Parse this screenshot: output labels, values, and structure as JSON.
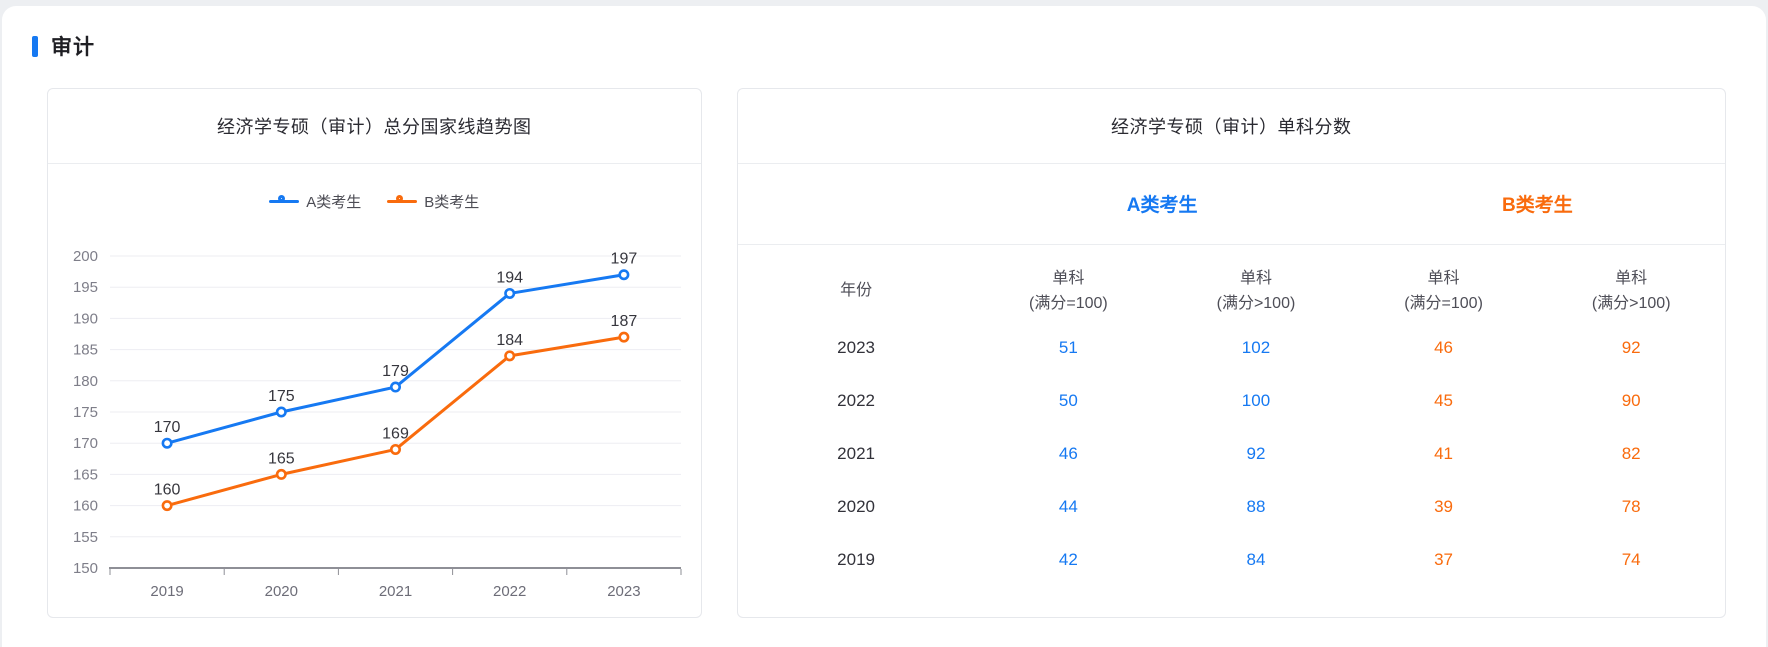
{
  "page": {
    "section_title": "审计"
  },
  "colors": {
    "accent_blue": "#1679f2",
    "accent_orange": "#f96b0d"
  },
  "chart_data": {
    "type": "line",
    "title": "经济学专硕（审计）总分国家线趋势图",
    "categories": [
      "2019",
      "2020",
      "2021",
      "2022",
      "2023"
    ],
    "series": [
      {
        "name": "A类考生",
        "color": "#1679f2",
        "values": [
          170,
          175,
          179,
          194,
          197
        ]
      },
      {
        "name": "B类考生",
        "color": "#f96b0d",
        "values": [
          160,
          165,
          169,
          184,
          187
        ]
      }
    ],
    "xlabel": "",
    "ylabel": "",
    "ylim": [
      150,
      200
    ],
    "ytick_step": 5,
    "grid": true,
    "legend_position": "top",
    "point_labels": true
  },
  "score_card": {
    "title": "经济学专硕（审计）单科分数",
    "groups": [
      {
        "label": "A类考生"
      },
      {
        "label": "B类考生"
      }
    ],
    "columns": [
      {
        "line1": "年份",
        "line2": ""
      },
      {
        "line1": "单科",
        "line2": "(满分=100)"
      },
      {
        "line1": "单科",
        "line2": "(满分>100)"
      },
      {
        "line1": "单科",
        "line2": "(满分=100)"
      },
      {
        "line1": "单科",
        "line2": "(满分>100)"
      }
    ],
    "rows": [
      {
        "year": "2023",
        "a1": "51",
        "a2": "102",
        "b1": "46",
        "b2": "92"
      },
      {
        "year": "2022",
        "a1": "50",
        "a2": "100",
        "b1": "45",
        "b2": "90"
      },
      {
        "year": "2021",
        "a1": "46",
        "a2": "92",
        "b1": "41",
        "b2": "82"
      },
      {
        "year": "2020",
        "a1": "44",
        "a2": "88",
        "b1": "39",
        "b2": "78"
      },
      {
        "year": "2019",
        "a1": "42",
        "a2": "84",
        "b1": "37",
        "b2": "74"
      }
    ]
  }
}
